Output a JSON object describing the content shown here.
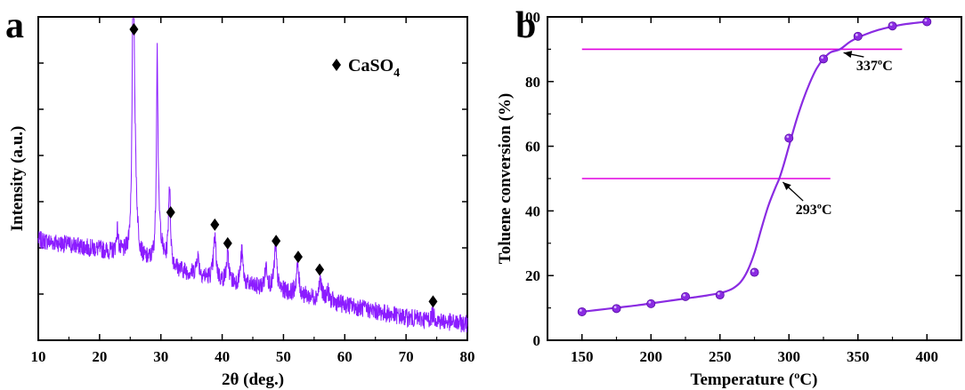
{
  "colors": {
    "xrd_trace": "#8B1CFF",
    "curve": "#8A2BE2",
    "hline": "#E000E0",
    "marker": "#000000",
    "axis": "#000000",
    "background": "#ffffff"
  },
  "panel_a": {
    "letter": "a",
    "legend": {
      "marker_icon": "diamond",
      "label": "CaSO",
      "subscript": "4"
    }
  },
  "panel_b": {
    "letter": "b",
    "annotations": [
      {
        "text": "337ºC",
        "x": 337,
        "y": 90
      },
      {
        "text": "293ºC",
        "x": 293,
        "y": 50
      }
    ]
  },
  "chart_data": [
    {
      "type": "line",
      "panel": "a",
      "title": "",
      "xlabel": "2θ (deg.)",
      "ylabel": "Intensity (a.u.)",
      "xlim": [
        10,
        80
      ],
      "ylim": [
        0,
        1
      ],
      "x_ticks": [
        10,
        20,
        30,
        40,
        50,
        60,
        70,
        80
      ],
      "y_ticks_labeled": false,
      "grid": false,
      "legend_position": "top-right",
      "series": [
        {
          "name": "CaSO4",
          "marker": "diamond",
          "peak_markers_x": [
            25.6,
            31.6,
            38.8,
            40.9,
            48.8,
            52.4,
            55.9,
            74.4
          ]
        }
      ],
      "background_points": [
        [
          10,
          0.31
        ],
        [
          20,
          0.28
        ],
        [
          24,
          0.26
        ],
        [
          27,
          0.24
        ],
        [
          32,
          0.22
        ],
        [
          40,
          0.18
        ],
        [
          50,
          0.15
        ],
        [
          60,
          0.11
        ],
        [
          70,
          0.07
        ],
        [
          80,
          0.05
        ]
      ],
      "peaks": [
        {
          "x": 25.5,
          "height": 0.98,
          "width": 0.18
        },
        {
          "x": 25.8,
          "height": 0.18,
          "width": 0.35
        },
        {
          "x": 29.4,
          "height": 0.62,
          "width": 0.15
        },
        {
          "x": 29.8,
          "height": 0.08,
          "width": 0.5
        },
        {
          "x": 31.4,
          "height": 0.25,
          "width": 0.2
        },
        {
          "x": 22.9,
          "height": 0.07,
          "width": 0.2
        },
        {
          "x": 36.0,
          "height": 0.06,
          "width": 0.25
        },
        {
          "x": 38.8,
          "height": 0.13,
          "width": 0.25
        },
        {
          "x": 40.9,
          "height": 0.08,
          "width": 0.25
        },
        {
          "x": 43.2,
          "height": 0.1,
          "width": 0.25
        },
        {
          "x": 47.2,
          "height": 0.07,
          "width": 0.25
        },
        {
          "x": 48.7,
          "height": 0.13,
          "width": 0.25
        },
        {
          "x": 52.3,
          "height": 0.09,
          "width": 0.25
        },
        {
          "x": 56.0,
          "height": 0.06,
          "width": 0.25
        },
        {
          "x": 57.2,
          "height": 0.03,
          "width": 0.25
        },
        {
          "x": 74.4,
          "height": 0.02,
          "width": 0.3
        }
      ],
      "noise_amplitude": 0.028
    },
    {
      "type": "line",
      "panel": "b",
      "title": "",
      "xlabel": "Temperature (ºC)",
      "ylabel": "Toluene conversion (%)",
      "xlim": [
        125,
        425
      ],
      "ylim": [
        0,
        100
      ],
      "x_ticks": [
        150,
        200,
        250,
        300,
        350,
        400
      ],
      "y_ticks": [
        0,
        20,
        40,
        60,
        80,
        100
      ],
      "grid": false,
      "series": [
        {
          "name": "",
          "x": [
            150,
            175,
            200,
            225,
            250,
            275,
            300,
            325,
            350,
            375,
            400
          ],
          "y": [
            8.8,
            9.8,
            11.3,
            13.5,
            14.0,
            21.0,
            62.5,
            87.0,
            94.0,
            97.2,
            98.5
          ]
        }
      ],
      "fit_curve": {
        "x": [
          150,
          160,
          170,
          180,
          190,
          200,
          210,
          220,
          230,
          240,
          250,
          255,
          260,
          265,
          270,
          275,
          280,
          285,
          290,
          293,
          296,
          300,
          305,
          310,
          315,
          320,
          325,
          330,
          337,
          345,
          355,
          365,
          375,
          385,
          395,
          400
        ],
        "y": [
          8.8,
          9.3,
          9.8,
          10.3,
          10.8,
          11.4,
          12.0,
          12.6,
          13.2,
          13.8,
          14.6,
          15.2,
          16.2,
          18.0,
          21.5,
          27.0,
          34.5,
          41.5,
          47.0,
          50.0,
          54.0,
          60.0,
          67.5,
          74.0,
          79.5,
          84.0,
          87.0,
          89.0,
          90.0,
          92.5,
          94.5,
          96.0,
          97.0,
          97.8,
          98.3,
          98.5
        ]
      },
      "reference_lines": [
        {
          "y": 90,
          "x_range": [
            150,
            382
          ]
        },
        {
          "y": 50,
          "x_range": [
            150,
            330
          ]
        }
      ]
    }
  ]
}
